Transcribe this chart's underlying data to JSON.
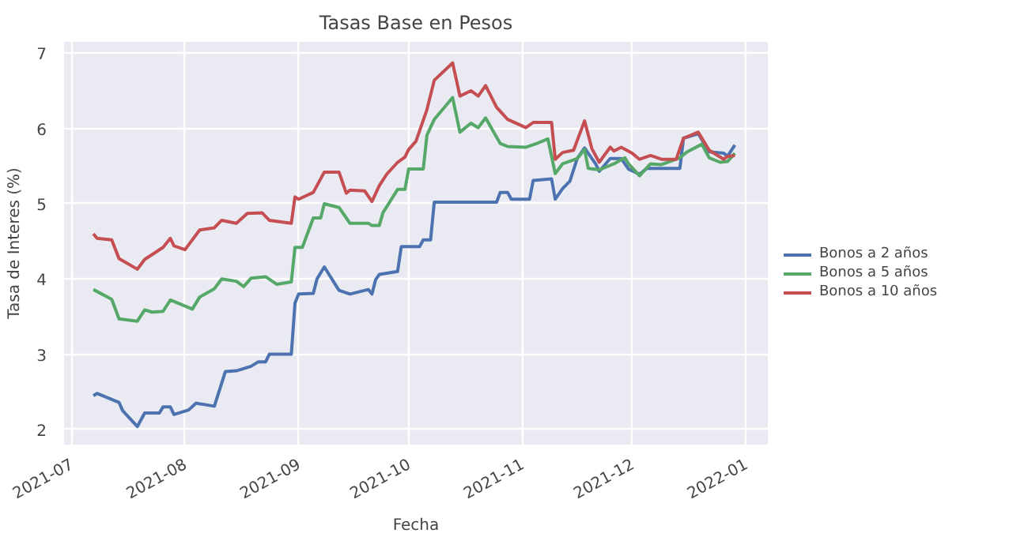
{
  "chart_data": {
    "type": "line",
    "title": "Tasas Base en Pesos",
    "xlabel": "Fecha",
    "ylabel": "Tasa de Interes (%)",
    "xlim": [
      "2021-06-29",
      "2022-01-07"
    ],
    "xticks": [
      {
        "value": "2021-07-01",
        "label": "2021-07"
      },
      {
        "value": "2021-08-01",
        "label": "2021-08"
      },
      {
        "value": "2021-09-01",
        "label": "2021-09"
      },
      {
        "value": "2021-10-01",
        "label": "2021-10"
      },
      {
        "value": "2021-11-01",
        "label": "2021-11"
      },
      {
        "value": "2021-12-01",
        "label": "2021-12"
      },
      {
        "value": "2022-01-01",
        "label": "2022-01"
      }
    ],
    "ylim": [
      1.8,
      7.15
    ],
    "yticks": [
      2,
      3,
      4,
      5,
      6,
      7
    ],
    "grid": true,
    "legend": "right",
    "line_style": "solid",
    "series": [
      {
        "name": "Bonos a 2 años",
        "color": "#4c72b0",
        "x": [
          "2021-07-07",
          "2021-07-08",
          "2021-07-14",
          "2021-07-15",
          "2021-07-19",
          "2021-07-21",
          "2021-07-25",
          "2021-07-26",
          "2021-07-28",
          "2021-07-29",
          "2021-08-02",
          "2021-08-04",
          "2021-08-09",
          "2021-08-12",
          "2021-08-15",
          "2021-08-19",
          "2021-08-21",
          "2021-08-23",
          "2021-08-24",
          "2021-08-30",
          "2021-08-31",
          "2021-09-01",
          "2021-09-05",
          "2021-09-06",
          "2021-09-08",
          "2021-09-12",
          "2021-09-15",
          "2021-09-20",
          "2021-09-21",
          "2021-09-22",
          "2021-09-23",
          "2021-09-28",
          "2021-09-29",
          "2021-10-04",
          "2021-10-05",
          "2021-10-07",
          "2021-10-08",
          "2021-10-25",
          "2021-10-26",
          "2021-10-28",
          "2021-10-29",
          "2021-11-03",
          "2021-11-04",
          "2021-11-09",
          "2021-11-10",
          "2021-11-12",
          "2021-11-14",
          "2021-11-16",
          "2021-11-18",
          "2021-11-21",
          "2021-11-22",
          "2021-11-25",
          "2021-11-28",
          "2021-11-30",
          "2021-12-03",
          "2021-12-05",
          "2021-12-14",
          "2021-12-15",
          "2021-12-19",
          "2021-12-22",
          "2021-12-26",
          "2021-12-27",
          "2021-12-29"
        ],
        "values": [
          2.45,
          2.48,
          2.36,
          2.25,
          2.04,
          2.22,
          2.22,
          2.3,
          2.3,
          2.2,
          2.26,
          2.35,
          2.31,
          2.77,
          2.78,
          2.84,
          2.9,
          2.9,
          3.0,
          3.0,
          3.68,
          3.8,
          3.81,
          4.0,
          4.16,
          3.85,
          3.8,
          3.86,
          3.8,
          3.99,
          4.06,
          4.1,
          4.43,
          4.43,
          4.52,
          4.52,
          5.02,
          5.02,
          5.15,
          5.15,
          5.06,
          5.06,
          5.31,
          5.33,
          5.06,
          5.2,
          5.3,
          5.6,
          5.74,
          5.53,
          5.43,
          5.6,
          5.6,
          5.46,
          5.39,
          5.47,
          5.47,
          5.87,
          5.93,
          5.69,
          5.67,
          5.63,
          5.78
        ]
      },
      {
        "name": "Bonos a 5 años",
        "color": "#55a868",
        "x": [
          "2021-07-07",
          "2021-07-12",
          "2021-07-14",
          "2021-07-19",
          "2021-07-21",
          "2021-07-23",
          "2021-07-26",
          "2021-07-28",
          "2021-08-03",
          "2021-08-05",
          "2021-08-09",
          "2021-08-11",
          "2021-08-15",
          "2021-08-17",
          "2021-08-19",
          "2021-08-23",
          "2021-08-26",
          "2021-08-30",
          "2021-08-31",
          "2021-09-02",
          "2021-09-05",
          "2021-09-07",
          "2021-09-08",
          "2021-09-12",
          "2021-09-15",
          "2021-09-20",
          "2021-09-21",
          "2021-09-23",
          "2021-09-24",
          "2021-09-28",
          "2021-09-30",
          "2021-10-01",
          "2021-10-05",
          "2021-10-06",
          "2021-10-08",
          "2021-10-13",
          "2021-10-15",
          "2021-10-18",
          "2021-10-20",
          "2021-10-22",
          "2021-10-26",
          "2021-10-28",
          "2021-11-02",
          "2021-11-05",
          "2021-11-08",
          "2021-11-10",
          "2021-11-12",
          "2021-11-16",
          "2021-11-18",
          "2021-11-19",
          "2021-11-22",
          "2021-11-26",
          "2021-11-29",
          "2021-11-30",
          "2021-12-03",
          "2021-12-06",
          "2021-12-09",
          "2021-12-14",
          "2021-12-16",
          "2021-12-20",
          "2021-12-22",
          "2021-12-25",
          "2021-12-27",
          "2021-12-29"
        ],
        "values": [
          3.86,
          3.73,
          3.47,
          3.44,
          3.59,
          3.56,
          3.57,
          3.72,
          3.6,
          3.76,
          3.87,
          4.0,
          3.97,
          3.9,
          4.01,
          4.03,
          3.93,
          3.96,
          4.42,
          4.42,
          4.81,
          4.81,
          5.0,
          4.95,
          4.74,
          4.74,
          4.71,
          4.71,
          4.88,
          5.19,
          5.19,
          5.46,
          5.46,
          5.91,
          6.12,
          6.41,
          5.95,
          6.07,
          6.01,
          6.14,
          5.8,
          5.76,
          5.75,
          5.8,
          5.86,
          5.4,
          5.53,
          5.6,
          5.72,
          5.47,
          5.45,
          5.53,
          5.61,
          5.53,
          5.37,
          5.53,
          5.52,
          5.61,
          5.69,
          5.79,
          5.61,
          5.55,
          5.56,
          5.67
        ]
      },
      {
        "name": "Bonos a 10 años",
        "color": "#c44e52",
        "x": [
          "2021-07-07",
          "2021-07-08",
          "2021-07-12",
          "2021-07-14",
          "2021-07-19",
          "2021-07-21",
          "2021-07-26",
          "2021-07-28",
          "2021-07-29",
          "2021-08-01",
          "2021-08-05",
          "2021-08-09",
          "2021-08-11",
          "2021-08-15",
          "2021-08-18",
          "2021-08-22",
          "2021-08-24",
          "2021-08-30",
          "2021-08-31",
          "2021-09-01",
          "2021-09-05",
          "2021-09-08",
          "2021-09-12",
          "2021-09-14",
          "2021-09-15",
          "2021-09-19",
          "2021-09-21",
          "2021-09-23",
          "2021-09-25",
          "2021-09-28",
          "2021-09-30",
          "2021-10-01",
          "2021-10-03",
          "2021-10-06",
          "2021-10-08",
          "2021-10-13",
          "2021-10-15",
          "2021-10-18",
          "2021-10-20",
          "2021-10-22",
          "2021-10-25",
          "2021-10-28",
          "2021-11-02",
          "2021-11-04",
          "2021-11-09",
          "2021-11-10",
          "2021-11-12",
          "2021-11-15",
          "2021-11-18",
          "2021-11-20",
          "2021-11-22",
          "2021-11-25",
          "2021-11-26",
          "2021-11-28",
          "2021-12-01",
          "2021-12-03",
          "2021-12-06",
          "2021-12-09",
          "2021-12-13",
          "2021-12-15",
          "2021-12-19",
          "2021-12-22",
          "2021-12-26",
          "2021-12-27",
          "2021-12-29"
        ],
        "values": [
          4.6,
          4.54,
          4.52,
          4.27,
          4.13,
          4.26,
          4.42,
          4.54,
          4.44,
          4.39,
          4.65,
          4.68,
          4.78,
          4.74,
          4.87,
          4.88,
          4.78,
          4.74,
          5.09,
          5.06,
          5.15,
          5.42,
          5.42,
          5.14,
          5.18,
          5.17,
          5.03,
          5.24,
          5.39,
          5.55,
          5.62,
          5.72,
          5.83,
          6.25,
          6.64,
          6.87,
          6.43,
          6.5,
          6.43,
          6.57,
          6.28,
          6.12,
          6.01,
          6.08,
          6.08,
          5.59,
          5.68,
          5.71,
          6.1,
          5.73,
          5.55,
          5.75,
          5.7,
          5.75,
          5.67,
          5.59,
          5.64,
          5.59,
          5.59,
          5.87,
          5.95,
          5.71,
          5.59,
          5.63,
          5.64
        ]
      }
    ]
  }
}
